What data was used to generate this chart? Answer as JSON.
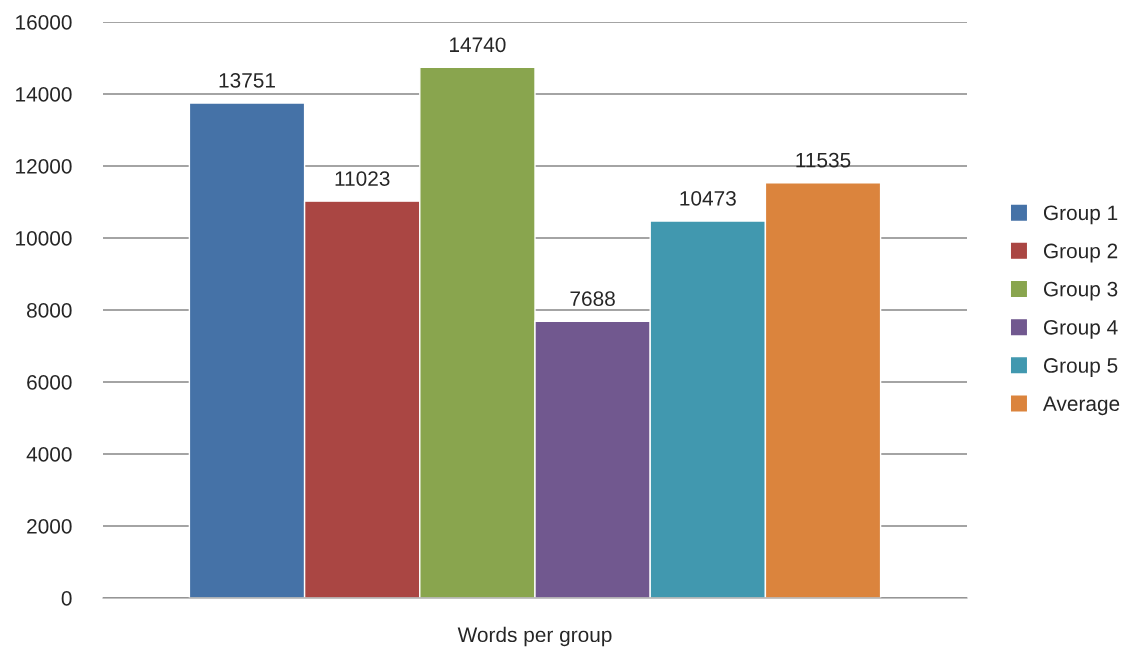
{
  "chart_data": {
    "type": "bar",
    "categories": [
      "Words per group"
    ],
    "series": [
      {
        "name": "Group 1",
        "color": "#4572a7",
        "values": [
          13751
        ]
      },
      {
        "name": "Group 2",
        "color": "#aa4643",
        "values": [
          11023
        ]
      },
      {
        "name": "Group 3",
        "color": "#89a54e",
        "values": [
          14740
        ]
      },
      {
        "name": "Group 4",
        "color": "#71588f",
        "values": [
          7688
        ]
      },
      {
        "name": "Group 5",
        "color": "#4198af",
        "values": [
          10473
        ]
      },
      {
        "name": "Average",
        "color": "#db843d",
        "values": [
          11535
        ]
      }
    ],
    "ylim": [
      0,
      16000
    ],
    "yticks": [
      0,
      2000,
      4000,
      6000,
      8000,
      10000,
      12000,
      14000,
      16000
    ],
    "grid": "y",
    "legend": "right",
    "data_labels": true
  }
}
